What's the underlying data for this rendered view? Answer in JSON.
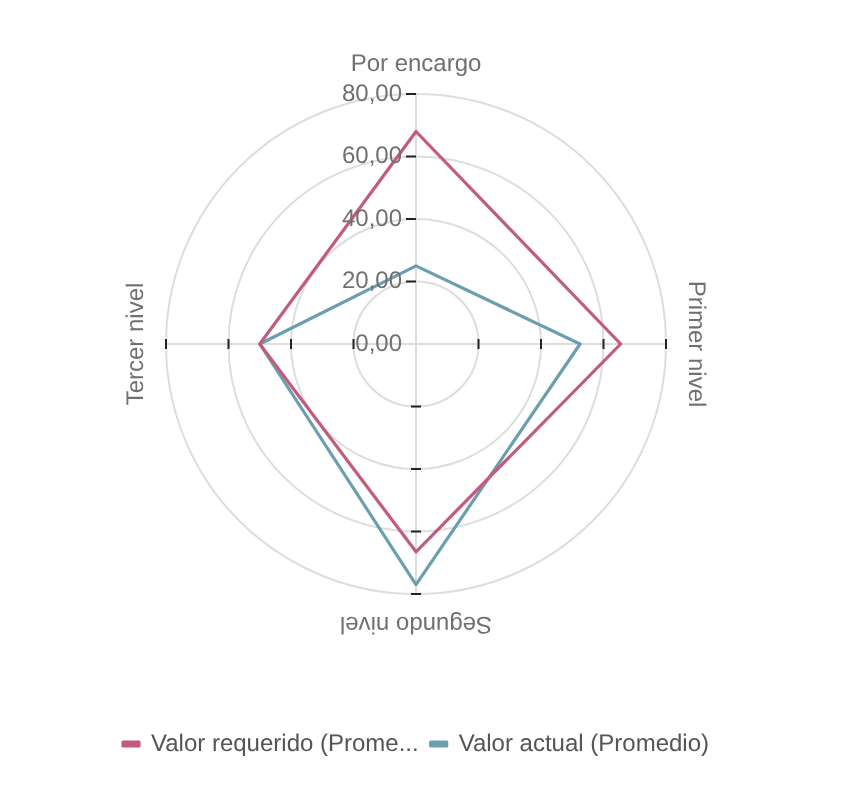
{
  "chart_data": {
    "type": "radar",
    "categories": [
      "Por encargo",
      "Primer nivel",
      "Segundo nivel",
      "Tercer nivel"
    ],
    "series": [
      {
        "name": "Valor requerido (Prome...",
        "color": "#c25b7c",
        "values": [
          68,
          65.5,
          66.5,
          50
        ]
      },
      {
        "name": "Valor actual (Promedio)",
        "color": "#6b9fb0",
        "values": [
          25,
          52.5,
          77,
          50
        ]
      }
    ],
    "ylim": [
      0,
      80
    ],
    "yticks": [
      {
        "value": 0,
        "label": "0,00"
      },
      {
        "value": 20,
        "label": "20,00"
      },
      {
        "value": 40,
        "label": "40,00"
      },
      {
        "value": 60,
        "label": "60,00"
      },
      {
        "value": 80,
        "label": "80,00"
      }
    ],
    "grid": true,
    "legend": "bottom",
    "marker": "none",
    "line_style": "solid"
  }
}
